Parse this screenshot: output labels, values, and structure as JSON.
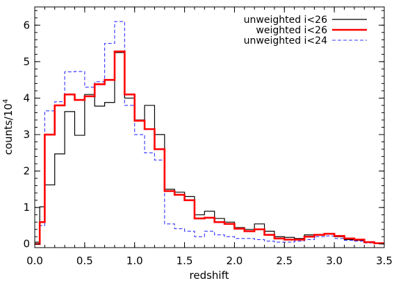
{
  "chart_data": {
    "type": "line",
    "title": "",
    "xlabel": "redshift",
    "ylabel": "counts/10",
    "ylabel_exponent": "4",
    "xlim": [
      0.0,
      3.5
    ],
    "ylim": [
      -0.1,
      6.5
    ],
    "xticks": [
      "0.0",
      "0.5",
      "1.0",
      "1.5",
      "2.0",
      "2.5",
      "3.0",
      "3.5"
    ],
    "yticks": [
      "0",
      "1",
      "2",
      "3",
      "4",
      "5",
      "6"
    ],
    "grid": false,
    "legend_position": "top-right",
    "bin_edges": [
      0.0,
      0.05,
      0.1,
      0.2,
      0.3,
      0.4,
      0.5,
      0.6,
      0.7,
      0.8,
      0.9,
      1.0,
      1.1,
      1.2,
      1.3,
      1.4,
      1.5,
      1.6,
      1.7,
      1.8,
      1.9,
      2.0,
      2.1,
      2.2,
      2.3,
      2.4,
      2.5,
      2.6,
      2.7,
      2.8,
      2.9,
      3.0,
      3.1,
      3.2,
      3.3,
      3.4,
      3.5
    ],
    "series": [
      {
        "name": "unweighted i<26",
        "color": "#000000",
        "style": "solid",
        "values": [
          0.05,
          1.02,
          1.62,
          2.47,
          3.63,
          2.98,
          4.1,
          3.78,
          3.88,
          5.25,
          4.0,
          3.4,
          3.8,
          3.0,
          1.5,
          1.42,
          1.3,
          0.8,
          0.9,
          0.7,
          0.6,
          0.45,
          0.4,
          0.55,
          0.35,
          0.2,
          0.18,
          0.15,
          0.25,
          0.25,
          0.28,
          0.2,
          0.12,
          0.1,
          0.05,
          0.02
        ]
      },
      {
        "name": "weighted i<26",
        "color": "#ff0000",
        "style": "solid-thick",
        "values": [
          0.0,
          0.6,
          3.0,
          3.8,
          4.1,
          3.95,
          4.05,
          4.38,
          4.5,
          5.28,
          4.1,
          3.38,
          3.15,
          2.6,
          1.45,
          1.35,
          1.2,
          0.7,
          0.72,
          0.6,
          0.55,
          0.42,
          0.35,
          0.4,
          0.25,
          0.15,
          0.12,
          0.12,
          0.2,
          0.25,
          0.28,
          0.22,
          0.15,
          0.12,
          0.05,
          0.02
        ]
      },
      {
        "name": "unweighted i<24",
        "color": "#3333ff",
        "style": "dashed",
        "values": [
          0.0,
          0.5,
          3.65,
          3.9,
          4.72,
          4.73,
          4.3,
          4.45,
          5.5,
          6.1,
          3.8,
          3.0,
          2.5,
          2.3,
          0.55,
          0.42,
          0.35,
          0.2,
          0.35,
          0.25,
          0.2,
          0.15,
          0.15,
          0.12,
          0.08,
          0.05,
          0.05,
          0.08,
          0.12,
          0.2,
          0.22,
          0.15,
          0.1,
          0.08,
          0.03,
          0.01
        ]
      }
    ]
  }
}
